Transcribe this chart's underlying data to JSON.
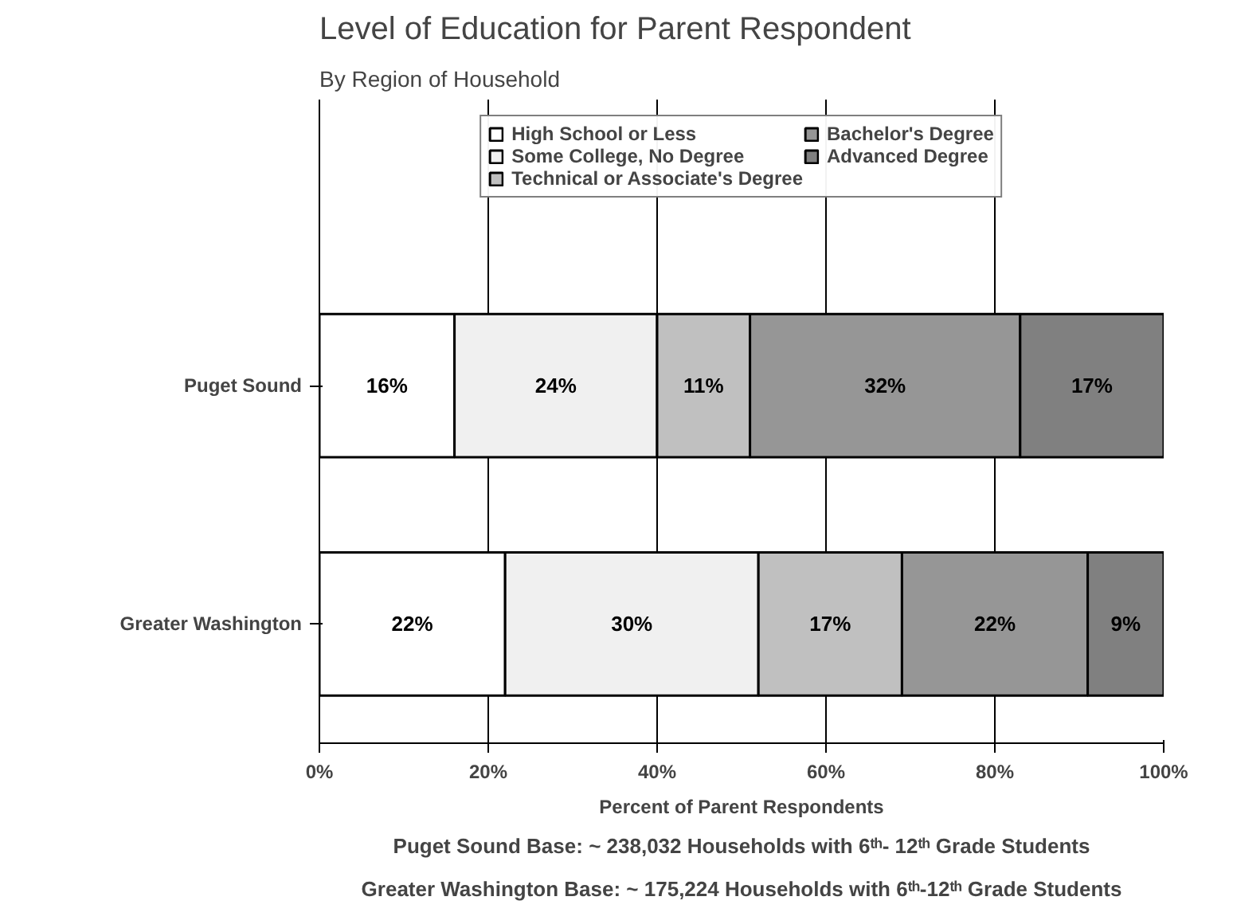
{
  "chart_data": {
    "type": "bar",
    "orientation": "horizontal",
    "stacked": true,
    "title": "Level of Education for Parent Respondent",
    "subtitle": "By Region of Household",
    "xlabel": "Percent of Parent Respondents",
    "categories": [
      "Puget Sound",
      "Greater Washington"
    ],
    "series": [
      {
        "name": "High School or Less",
        "color": "#ffffff",
        "values": [
          16,
          22
        ],
        "value_labels": [
          "16%",
          "22%"
        ]
      },
      {
        "name": "Some College, No Degree",
        "color": "#f0f0f0",
        "values": [
          24,
          30
        ],
        "value_labels": [
          "24%",
          "30%"
        ]
      },
      {
        "name": "Technical or Associate's Degree",
        "color": "#c0c0c0",
        "values": [
          11,
          17
        ],
        "value_labels": [
          "11%",
          "17%"
        ]
      },
      {
        "name": "Bachelor's Degree",
        "color": "#969696",
        "values": [
          32,
          22
        ],
        "value_labels": [
          "32%",
          "22%"
        ]
      },
      {
        "name": "Advanced Degree",
        "color": "#808080",
        "values": [
          17,
          9
        ],
        "value_labels": [
          "17%",
          "9%"
        ]
      }
    ],
    "xlim": [
      0,
      100
    ],
    "xticks": [
      {
        "value": 0,
        "label": "0%"
      },
      {
        "value": 20,
        "label": "20%"
      },
      {
        "value": 40,
        "label": "40%"
      },
      {
        "value": 60,
        "label": "60%"
      },
      {
        "value": 80,
        "label": "80%"
      },
      {
        "value": 100,
        "label": "100%"
      }
    ],
    "grid": "x",
    "legend": "top",
    "annotations": [
      "Puget Sound Base: ~ 238,032 Households with 6ᵗʰ- 12ᵗʰ Grade Students",
      "Greater Washington Base: ~ 175,224 Households with 6ᵗʰ-12ᵗʰ Grade Students"
    ]
  }
}
